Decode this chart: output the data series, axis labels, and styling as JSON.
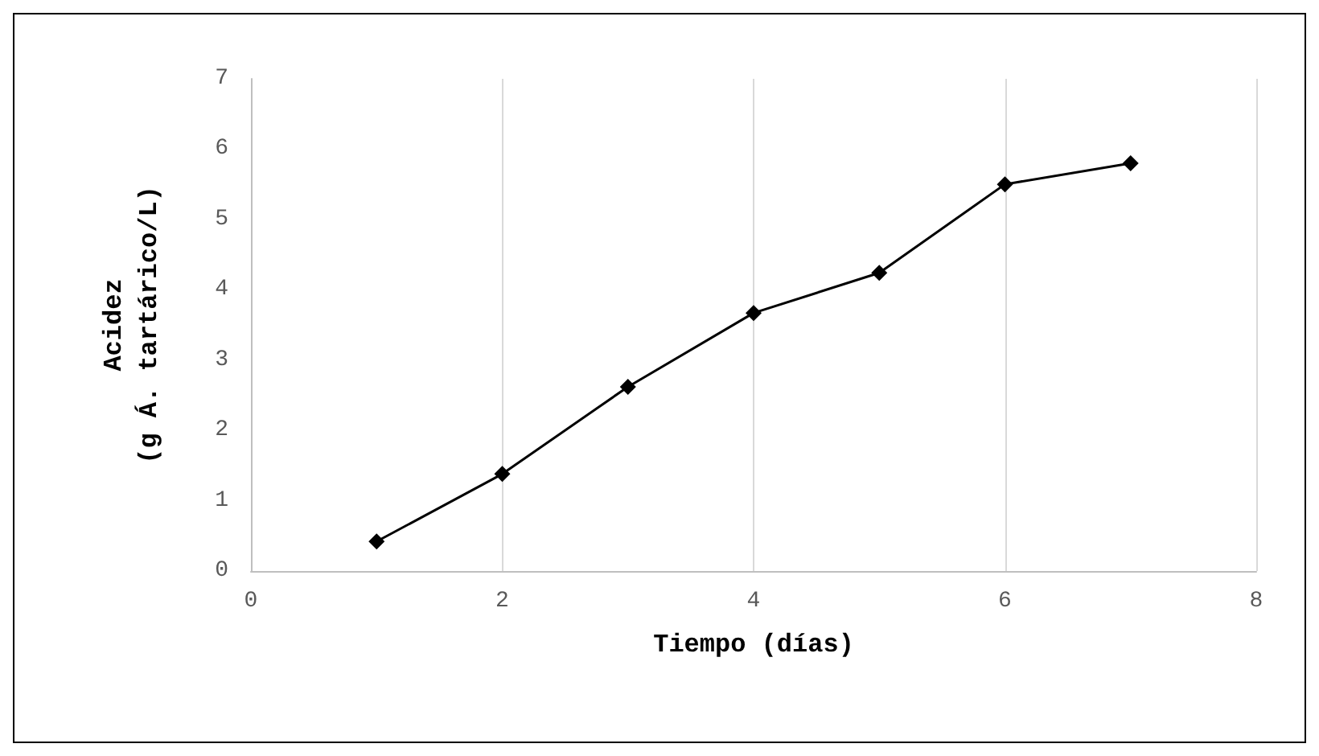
{
  "chart_data": {
    "type": "line",
    "xlabel": "Tiempo (días)",
    "ylabel": "Acidez\n(g Á. tartárico/L)",
    "x": [
      1,
      2,
      3,
      4,
      5,
      6,
      7
    ],
    "series": [
      {
        "color": "#000000",
        "values": [
          0.42,
          1.38,
          2.62,
          3.67,
          4.24,
          5.5,
          5.8
        ]
      }
    ],
    "xlim": [
      0,
      8
    ],
    "xticks": [
      0,
      2,
      4,
      6,
      8
    ],
    "ylim": [
      0,
      7
    ],
    "yticks": [
      0,
      1,
      2,
      3,
      4,
      5,
      6,
      7
    ],
    "grid": "x",
    "marker": "diamond",
    "line_style": "solid"
  }
}
